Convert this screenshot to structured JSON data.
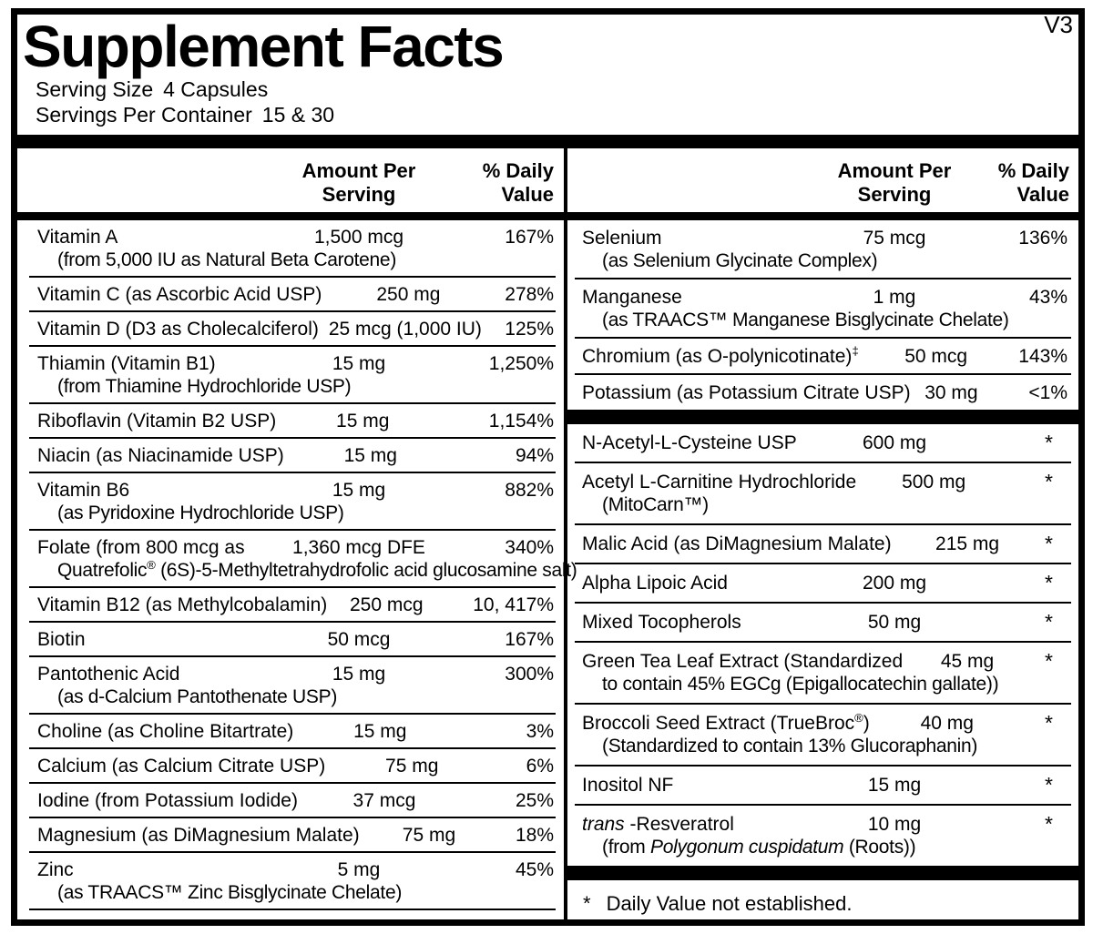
{
  "version_tag": "V3",
  "title": "Supplement Facts",
  "serving": {
    "size_label": "Serving Size",
    "size_value": "4 Capsules",
    "per_container_label": "Servings Per Container",
    "per_container_value": "15 & 30"
  },
  "column_header": {
    "amount_line1": "Amount Per",
    "amount_line2": "Serving",
    "dv_line1": "% Daily",
    "dv_line2": "Value"
  },
  "left_column": {
    "rows": [
      {
        "name": [
          {
            "t": "Vitamin A"
          }
        ],
        "sub": [
          {
            "t": "(from 5,000 IU as Natural Beta Carotene)"
          }
        ],
        "amount": "1,500 mcg",
        "dv": "167%"
      },
      {
        "name": [
          {
            "t": "Vitamin C (as Ascorbic Acid USP)"
          }
        ],
        "amount": "250 mg",
        "dv": "278%"
      },
      {
        "name": [
          {
            "t": "Vitamin D (D3 as Cholecalciferol)"
          }
        ],
        "amount": "25 mcg (1,000 IU)",
        "dv": "125%"
      },
      {
        "name": [
          {
            "t": "Thiamin (Vitamin B1)"
          }
        ],
        "sub": [
          {
            "t": "(from Thiamine Hydrochloride USP)"
          }
        ],
        "amount": "15 mg",
        "dv": "1,250%"
      },
      {
        "name": [
          {
            "t": "Riboflavin (Vitamin B2 USP)"
          }
        ],
        "amount": "15 mg",
        "dv": "1,154%"
      },
      {
        "name": [
          {
            "t": "Niacin (as Niacinamide USP)"
          }
        ],
        "amount": "15 mg",
        "dv": "94%"
      },
      {
        "name": [
          {
            "t": "Vitamin B6"
          }
        ],
        "sub": [
          {
            "t": "(as Pyridoxine Hydrochloride USP)"
          }
        ],
        "amount": "15 mg",
        "dv": "882%"
      },
      {
        "name": [
          {
            "t": "Folate (from 800 mcg as"
          }
        ],
        "sub": [
          {
            "t": "Quatrefolic"
          },
          {
            "t": "®",
            "sup": true
          },
          {
            "t": " (6S)-5-Methyltetrahydrofolic acid glucosamine salt)"
          }
        ],
        "amount": "1,360 mcg DFE",
        "dv": "340%"
      },
      {
        "name": [
          {
            "t": "Vitamin B12 (as Methylcobalamin)"
          }
        ],
        "amount": "250 mcg",
        "dv": "10, 417%"
      },
      {
        "name": [
          {
            "t": "Biotin"
          }
        ],
        "amount": "50 mcg",
        "dv": "167%"
      },
      {
        "name": [
          {
            "t": "Pantothenic Acid"
          }
        ],
        "sub": [
          {
            "t": "(as d-Calcium Pantothenate USP)"
          }
        ],
        "amount": "15 mg",
        "dv": "300%"
      },
      {
        "name": [
          {
            "t": "Choline (as Choline Bitartrate)"
          }
        ],
        "amount": "15 mg",
        "dv": "3%"
      },
      {
        "name": [
          {
            "t": "Calcium (as Calcium Citrate USP)"
          }
        ],
        "amount": "75 mg",
        "dv": "6%"
      },
      {
        "name": [
          {
            "t": "Iodine (from Potassium Iodide)"
          }
        ],
        "amount": "37 mcg",
        "dv": "25%"
      },
      {
        "name": [
          {
            "t": "Magnesium (as DiMagnesium Malate)"
          }
        ],
        "amount": "75 mg",
        "dv": "18%"
      },
      {
        "name": [
          {
            "t": "Zinc"
          }
        ],
        "sub": [
          {
            "t": "(as TRAACS™ Zinc Bisglycinate Chelate)"
          }
        ],
        "amount": "5 mg",
        "dv": "45%"
      }
    ]
  },
  "right_column": {
    "section1_rows": [
      {
        "name": [
          {
            "t": "Selenium"
          }
        ],
        "sub": [
          {
            "t": "(as Selenium Glycinate Complex)"
          }
        ],
        "amount": "75 mcg",
        "dv": "136%"
      },
      {
        "name": [
          {
            "t": "Manganese"
          }
        ],
        "sub": [
          {
            "t": "(as TRAACS™ Manganese Bisglycinate Chelate)"
          }
        ],
        "amount": "1 mg",
        "dv": "43%"
      },
      {
        "name": [
          {
            "t": "Chromium (as O-polynicotinate)"
          },
          {
            "t": "‡",
            "sup": true
          }
        ],
        "amount": "50 mcg",
        "dv": "143%"
      },
      {
        "name": [
          {
            "t": "Potassium (as Potassium Citrate USP)"
          }
        ],
        "amount": "30 mg",
        "dv": "<1%"
      }
    ],
    "section2_rows": [
      {
        "name": [
          {
            "t": "N-Acetyl-L-Cysteine USP"
          }
        ],
        "amount": "600 mg",
        "dv": "*"
      },
      {
        "name": [
          {
            "t": "Acetyl L-Carnitine Hydrochloride"
          }
        ],
        "sub": [
          {
            "t": "(MitoCarn™)"
          }
        ],
        "amount": "500 mg",
        "dv": "*"
      },
      {
        "name": [
          {
            "t": "Malic Acid (as DiMagnesium Malate)"
          }
        ],
        "amount": "215 mg",
        "dv": "*"
      },
      {
        "name": [
          {
            "t": "Alpha Lipoic Acid"
          }
        ],
        "amount": "200 mg",
        "dv": "*"
      },
      {
        "name": [
          {
            "t": "Mixed Tocopherols"
          }
        ],
        "amount": "50 mg",
        "dv": "*"
      },
      {
        "name": [
          {
            "t": "Green Tea Leaf Extract (Standardized"
          }
        ],
        "sub": [
          {
            "t": "to contain 45% EGCg (Epigallocatechin gallate))"
          }
        ],
        "amount": "45 mg",
        "dv": "*"
      },
      {
        "name": [
          {
            "t": "Broccoli Seed Extract (TrueBroc"
          },
          {
            "t": "®",
            "sup": true
          },
          {
            "t": ")"
          }
        ],
        "sub": [
          {
            "t": "(Standardized to contain 13% Glucoraphanin)"
          }
        ],
        "amount": "40 mg",
        "dv": "*"
      },
      {
        "name": [
          {
            "t": "Inositol NF"
          }
        ],
        "amount": "15 mg",
        "dv": "*"
      },
      {
        "name": [
          {
            "t": "trans ",
            "i": true
          },
          {
            "t": "-Resveratrol"
          }
        ],
        "sub": [
          {
            "t": "(from "
          },
          {
            "t": "Polygonum cuspidatum",
            "i": true
          },
          {
            "t": " (Roots))"
          }
        ],
        "amount": "10 mg",
        "dv": "*"
      }
    ],
    "footnote": {
      "symbol": "*",
      "text": "Daily Value not established."
    }
  },
  "colors": {
    "ink": "#000000",
    "paper": "#ffffff"
  }
}
